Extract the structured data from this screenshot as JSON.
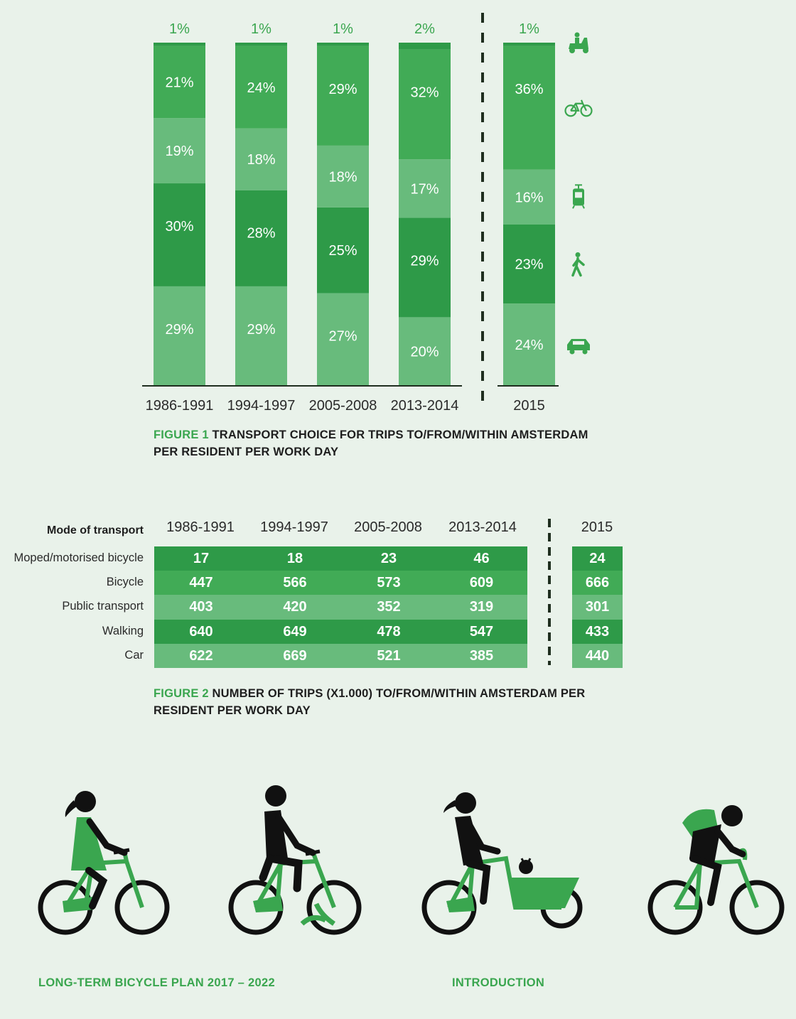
{
  "chart_data": [
    {
      "type": "bar",
      "stacked": true,
      "categories": [
        "1986-1991",
        "1994-1997",
        "2005-2008",
        "2013-2014",
        "2015"
      ],
      "series": [
        {
          "name": "Car",
          "icon": "car-icon",
          "color": "#68bb7c",
          "values": [
            29,
            29,
            27,
            20,
            24
          ]
        },
        {
          "name": "Walking",
          "icon": "pedestrian-icon",
          "color": "#2e9a48",
          "values": [
            30,
            28,
            25,
            29,
            23
          ]
        },
        {
          "name": "Public transport",
          "icon": "tram-icon",
          "color": "#68bb7c",
          "values": [
            19,
            18,
            18,
            17,
            16
          ]
        },
        {
          "name": "Bicycle",
          "icon": "bicycle-icon",
          "color": "#41ab56",
          "values": [
            21,
            24,
            29,
            32,
            36
          ]
        },
        {
          "name": "Moped/motorised bicycle",
          "icon": "moped-icon",
          "color": "#2e9a48",
          "values": [
            1,
            1,
            1,
            2,
            1
          ]
        }
      ],
      "labels": [
        [
          "29%",
          "29%",
          "27%",
          "20%",
          "24%"
        ],
        [
          "30%",
          "28%",
          "25%",
          "29%",
          "23%"
        ],
        [
          "19%",
          "18%",
          "18%",
          "17%",
          "16%"
        ],
        [
          "21%",
          "24%",
          "29%",
          "32%",
          "36%"
        ],
        [
          "1%",
          "1%",
          "1%",
          "2%",
          "1%"
        ]
      ],
      "unit": "%",
      "separator_before": "2015",
      "legend": "icons-right"
    },
    {
      "type": "table",
      "row_header_title": "Mode of transport",
      "columns": [
        "1986-1991",
        "1994-1997",
        "2005-2008",
        "2013-2014",
        "2015"
      ],
      "rows": [
        {
          "label": "Moped/motorised bicycle",
          "color": "#2e9a48",
          "values": [
            17,
            18,
            23,
            46,
            24
          ]
        },
        {
          "label": "Bicycle",
          "color": "#41ab56",
          "values": [
            447,
            566,
            573,
            609,
            666
          ]
        },
        {
          "label": "Public transport",
          "color": "#68bb7c",
          "values": [
            403,
            420,
            352,
            319,
            301
          ]
        },
        {
          "label": "Walking",
          "color": "#2e9a48",
          "values": [
            640,
            649,
            478,
            547,
            433
          ]
        },
        {
          "label": "Car",
          "color": "#68bb7c",
          "values": [
            622,
            669,
            521,
            385,
            440
          ]
        }
      ],
      "separator_before": "2015"
    }
  ],
  "figure1": {
    "number": "FIGURE 1",
    "title": "TRANSPORT CHOICE FOR TRIPS TO/FROM/WITHIN AMSTERDAM PER RESIDENT PER WORK DAY"
  },
  "figure2": {
    "number": "FIGURE 2",
    "title": "NUMBER OF TRIPS (X1.000) TO/FROM/WITHIN AMSTERDAM PER RESIDENT PER WORK DAY"
  },
  "footer": {
    "left": "LONG-TERM BICYCLE PLAN 2017 – 2022",
    "right": "INTRODUCTION"
  },
  "colors": {
    "dark": "#2e9a48",
    "mid": "#41ab56",
    "light": "#68bb7c",
    "background": "#e9f2ea",
    "accent": "#3aa64f"
  }
}
